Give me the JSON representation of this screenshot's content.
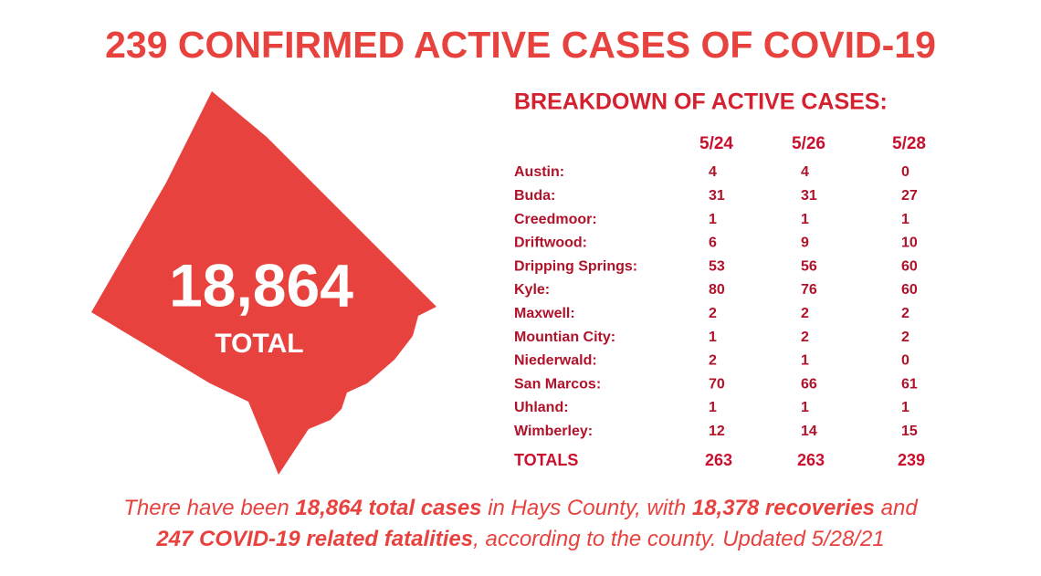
{
  "title": "239 CONFIRMED ACTIVE CASES OF COVID-19",
  "map": {
    "total": "18,864",
    "label": "TOTAL"
  },
  "table": {
    "heading": "BREAKDOWN OF ACTIVE CASES:",
    "columns": [
      "5/24",
      "5/26",
      "5/28"
    ],
    "rows": [
      {
        "name": "Austin:",
        "values": [
          4,
          4,
          0
        ]
      },
      {
        "name": "Buda:",
        "values": [
          31,
          31,
          27
        ]
      },
      {
        "name": "Creedmoor:",
        "values": [
          1,
          1,
          1
        ]
      },
      {
        "name": "Driftwood:",
        "values": [
          6,
          9,
          10
        ]
      },
      {
        "name": "Dripping Springs:",
        "values": [
          53,
          56,
          60
        ]
      },
      {
        "name": "Kyle:",
        "values": [
          80,
          76,
          60
        ]
      },
      {
        "name": "Maxwell:",
        "values": [
          2,
          2,
          2
        ]
      },
      {
        "name": "Mountian City:",
        "values": [
          1,
          2,
          2
        ]
      },
      {
        "name": "Niederwald:",
        "values": [
          2,
          1,
          0
        ]
      },
      {
        "name": "San Marcos:",
        "values": [
          70,
          66,
          61
        ]
      },
      {
        "name": "Uhland:",
        "values": [
          1,
          1,
          1
        ]
      },
      {
        "name": "Wimberley:",
        "values": [
          12,
          14,
          15
        ]
      }
    ],
    "totals": {
      "name": "TOTALS",
      "values": [
        263,
        263,
        239
      ]
    }
  },
  "footer": {
    "lines": [
      [
        {
          "text": "There have been ",
          "bold": false
        },
        {
          "text": "18,864 total cases",
          "bold": true
        },
        {
          "text": " in Hays County, with ",
          "bold": false
        },
        {
          "text": "18,378 recoveries",
          "bold": true
        },
        {
          "text": " and",
          "bold": false
        }
      ],
      [
        {
          "text": "247 COVID-19 related fatalities",
          "bold": true
        },
        {
          "text": ", according to the county. Updated 5/28/21",
          "bold": false
        }
      ]
    ]
  }
}
